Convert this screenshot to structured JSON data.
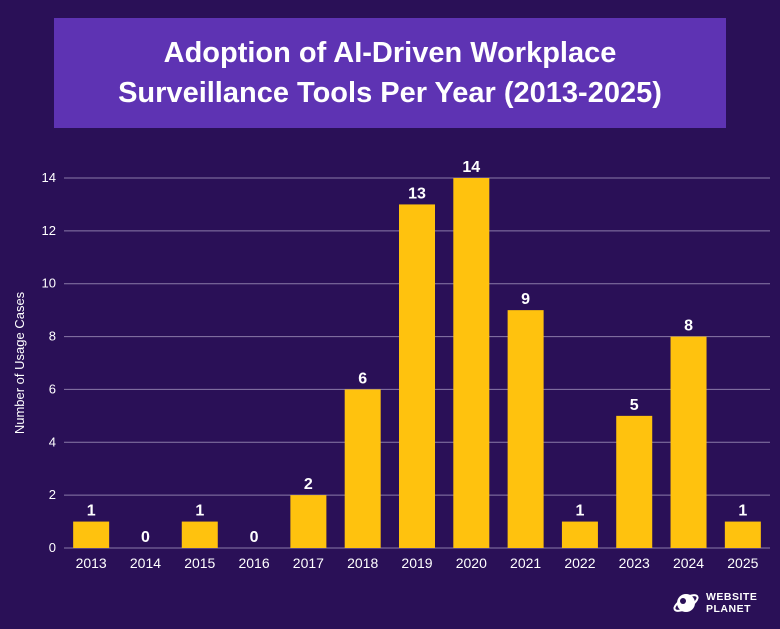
{
  "chart_data": {
    "type": "bar",
    "title": "Adoption of AI-Driven Workplace Surveillance Tools Per Year (2013-2025)",
    "xlabel": "",
    "ylabel": "Number of Usage Cases",
    "categories": [
      "2013",
      "2014",
      "2015",
      "2016",
      "2017",
      "2018",
      "2019",
      "2020",
      "2021",
      "2022",
      "2023",
      "2024",
      "2025"
    ],
    "values": [
      1,
      0,
      1,
      0,
      2,
      6,
      13,
      14,
      9,
      1,
      5,
      8,
      1
    ],
    "ylim": [
      0,
      14
    ],
    "yticks": [
      0,
      2,
      4,
      6,
      8,
      10,
      12,
      14
    ],
    "grid": true,
    "colors": {
      "bar": "#ffc20e",
      "background": "#2a1057",
      "title_box": "#5e33b3",
      "grid": "#8a7aa8",
      "text": "#ffffff"
    }
  },
  "logo": {
    "line1": "WEBSITE",
    "line2": "PLANET"
  }
}
